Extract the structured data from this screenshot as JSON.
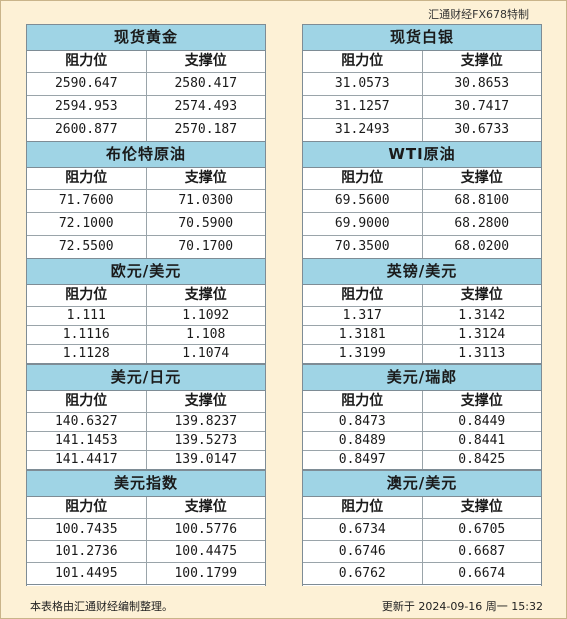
{
  "brand": "汇通财经FX678特制",
  "headers": {
    "resistance": "阻力位",
    "support": "支撑位"
  },
  "left": [
    {
      "title": "现货黄金",
      "rows": [
        [
          "2590.647",
          "2580.417"
        ],
        [
          "2594.953",
          "2574.493"
        ],
        [
          "2600.877",
          "2570.187"
        ]
      ]
    },
    {
      "title": "布伦特原油",
      "rows": [
        [
          "71.7600",
          "71.0300"
        ],
        [
          "72.1000",
          "70.5900"
        ],
        [
          "72.5500",
          "70.1700"
        ]
      ]
    },
    {
      "title": "欧元/美元",
      "rows": [
        [
          "1.111",
          "1.1092"
        ],
        [
          "1.1116",
          "1.108"
        ],
        [
          "1.1128",
          "1.1074"
        ]
      ]
    },
    {
      "title": "美元/日元",
      "rows": [
        [
          "140.6327",
          "139.8237"
        ],
        [
          "141.1453",
          "139.5273"
        ],
        [
          "141.4417",
          "139.0147"
        ]
      ]
    },
    {
      "title": "美元指数",
      "rows": [
        [
          "100.7435",
          "100.5776"
        ],
        [
          "101.2736",
          "100.4475"
        ],
        [
          "101.4495",
          "100.1799"
        ]
      ]
    }
  ],
  "right": [
    {
      "title": "现货白银",
      "rows": [
        [
          "31.0573",
          "30.8653"
        ],
        [
          "31.1257",
          "30.7417"
        ],
        [
          "31.2493",
          "30.6733"
        ]
      ]
    },
    {
      "title": "WTI原油",
      "rows": [
        [
          "69.5600",
          "68.8100"
        ],
        [
          "69.9000",
          "68.2800"
        ],
        [
          "70.3500",
          "68.0200"
        ]
      ]
    },
    {
      "title": "英镑/美元",
      "rows": [
        [
          "1.317",
          "1.3142"
        ],
        [
          "1.3181",
          "1.3124"
        ],
        [
          "1.3199",
          "1.3113"
        ]
      ]
    },
    {
      "title": "美元/瑞郎",
      "rows": [
        [
          "0.8473",
          "0.8449"
        ],
        [
          "0.8489",
          "0.8441"
        ],
        [
          "0.8497",
          "0.8425"
        ]
      ]
    },
    {
      "title": "澳元/美元",
      "rows": [
        [
          "0.6734",
          "0.6705"
        ],
        [
          "0.6746",
          "0.6687"
        ],
        [
          "0.6762",
          "0.6674"
        ]
      ]
    }
  ],
  "footer": {
    "note": "本表格由汇通财经编制整理。",
    "updated": "更新于 2024-09-16 周一 15:32"
  }
}
